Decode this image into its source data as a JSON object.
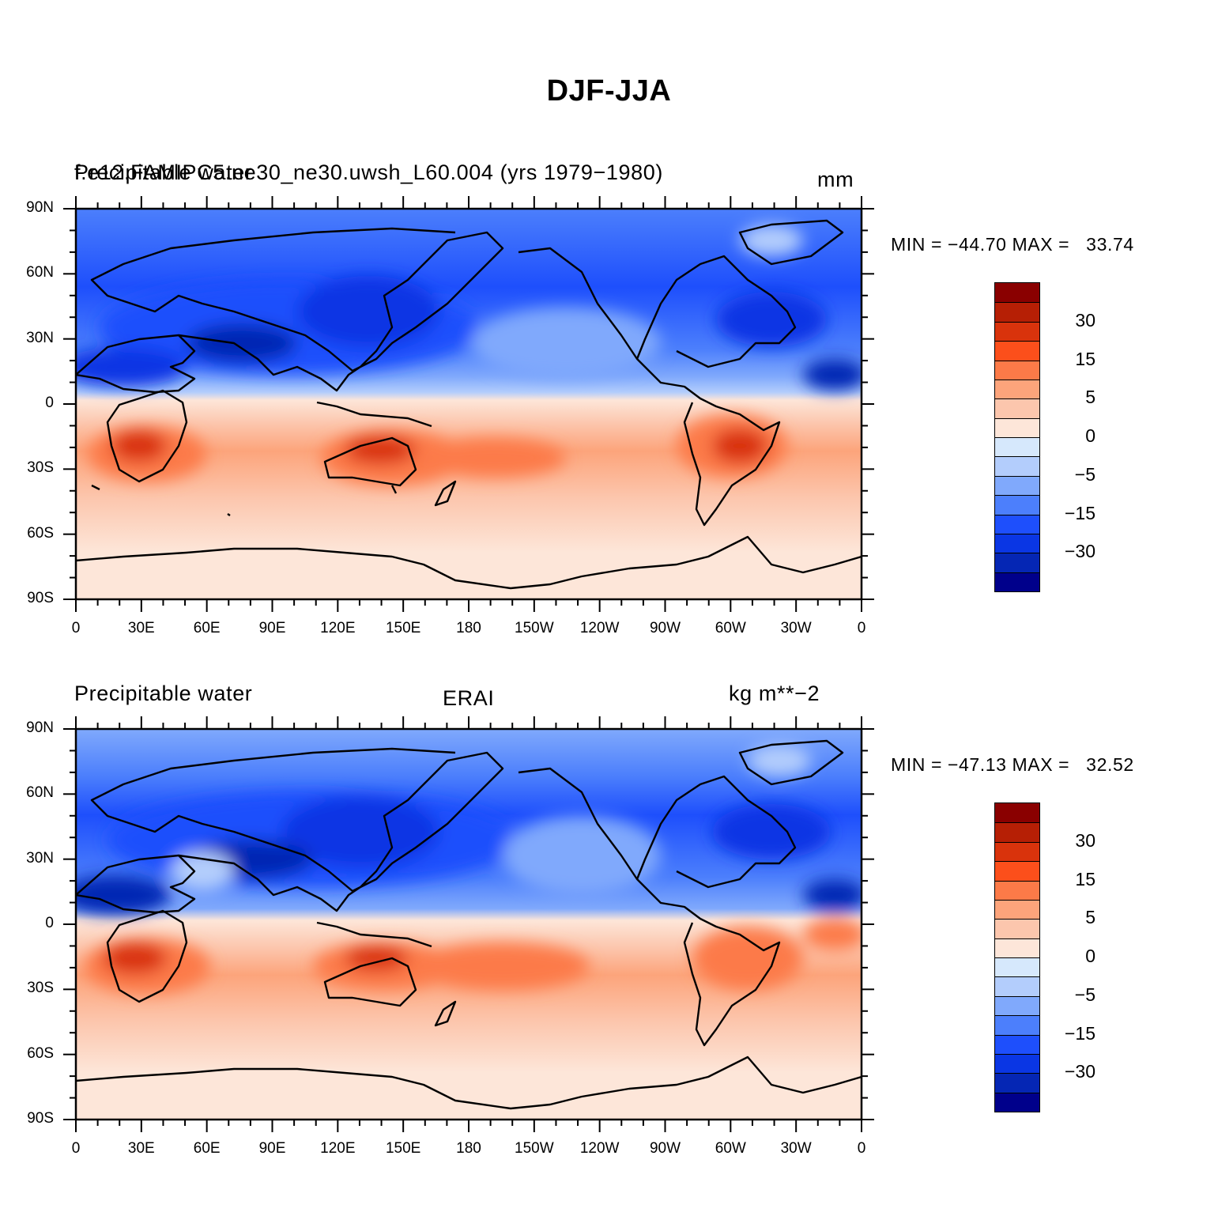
{
  "title": "DJF-JJA",
  "panels": [
    {
      "left_title": "Precipitable water",
      "center_title": "f.e12.FAMIPC5.ne30_ne30.uwsh_L60.004 (yrs 1979−1980)",
      "right_title": "mm",
      "min_max": "MIN = −44.70 MAX =   33.74"
    },
    {
      "left_title": "Precipitable water",
      "center_title": "ERAI",
      "right_title": "kg m**−2",
      "min_max": "MIN = −47.13 MAX =   32.52"
    }
  ],
  "lat_ticks": [
    "90N",
    "60N",
    "30N",
    "0",
    "30S",
    "60S",
    "90S"
  ],
  "lon_ticks": [
    "0",
    "30E",
    "60E",
    "90E",
    "120E",
    "150E",
    "180",
    "150W",
    "120W",
    "90W",
    "60W",
    "30W",
    "0"
  ],
  "colorbar": {
    "colors": [
      "#8a0000",
      "#b61f05",
      "#d9330c",
      "#fc4f1b",
      "#fc7a48",
      "#fca47b",
      "#fcc6ad",
      "#fde6d9",
      "#d6e8fc",
      "#b3cdfc",
      "#80a9fc",
      "#4c7ffc",
      "#1e4ffc",
      "#0a36e4",
      "#0526b4",
      "#00008b"
    ],
    "labels": [
      "30",
      "15",
      "5",
      "0",
      "−5",
      "−15",
      "−30"
    ]
  }
}
